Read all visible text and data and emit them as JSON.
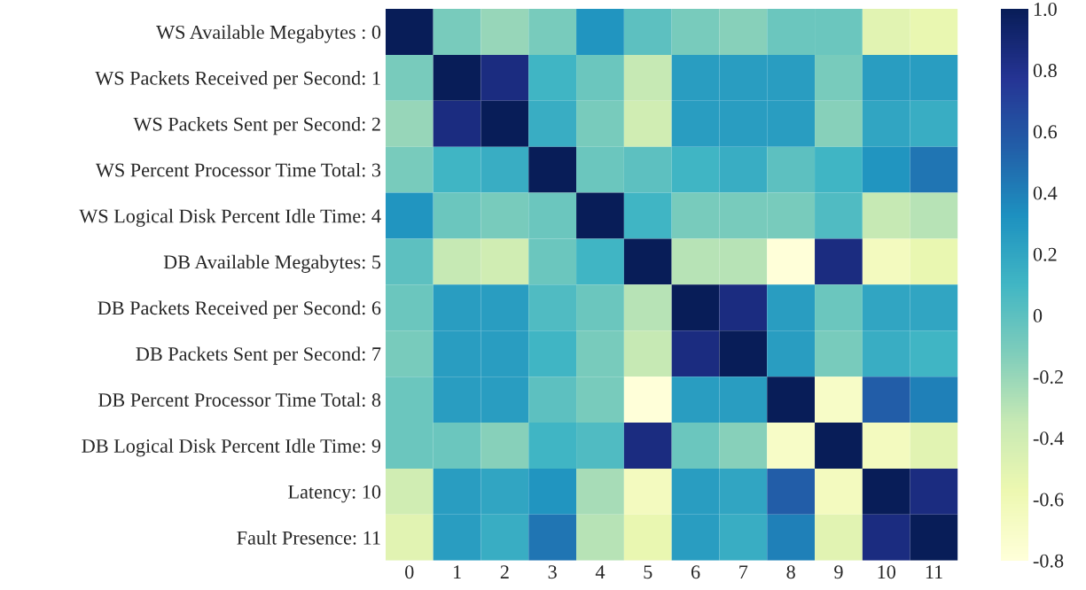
{
  "chart_data": {
    "type": "heatmap",
    "categories": [
      "0",
      "1",
      "2",
      "3",
      "4",
      "5",
      "6",
      "7",
      "8",
      "9",
      "10",
      "11"
    ],
    "y_categories": [
      "WS Available Megabytes : 0",
      "WS Packets Received per Second: 1",
      "WS Packets Sent per Second: 2",
      "WS Percent Processor Time Total: 3",
      "WS Logical Disk Percent Idle Time: 4",
      "DB Available Megabytes: 5",
      "DB Packets Received per Second: 6",
      "DB Packets Sent per Second: 7",
      "DB Percent Processor Time Total: 8",
      "DB Logical Disk Percent Idle Time: 9",
      "Latency: 10",
      "Fault Presence: 11"
    ],
    "cells": [
      [
        1.0,
        -0.1,
        -0.2,
        -0.1,
        0.3,
        0.0,
        -0.1,
        -0.15,
        -0.05,
        -0.05,
        -0.5,
        -0.55
      ],
      [
        -0.1,
        1.0,
        0.85,
        0.1,
        -0.05,
        -0.35,
        0.25,
        0.25,
        0.25,
        -0.1,
        0.25,
        0.25
      ],
      [
        -0.2,
        0.85,
        1.0,
        0.15,
        -0.1,
        -0.4,
        0.25,
        0.25,
        0.25,
        -0.15,
        0.2,
        0.15
      ],
      [
        -0.1,
        0.1,
        0.15,
        1.0,
        -0.05,
        0.0,
        0.1,
        0.15,
        0.0,
        0.1,
        0.3,
        0.45
      ],
      [
        0.3,
        -0.05,
        -0.1,
        -0.05,
        1.0,
        0.1,
        -0.1,
        -0.1,
        -0.1,
        0.05,
        -0.35,
        -0.3
      ],
      [
        0.0,
        -0.35,
        -0.4,
        -0.05,
        0.1,
        1.0,
        -0.3,
        -0.3,
        -0.8,
        0.85,
        -0.65,
        -0.55
      ],
      [
        -0.05,
        0.25,
        0.25,
        0.05,
        -0.05,
        -0.3,
        1.0,
        0.85,
        0.25,
        -0.05,
        0.2,
        0.2
      ],
      [
        -0.1,
        0.25,
        0.25,
        0.1,
        -0.1,
        -0.35,
        0.85,
        1.0,
        0.25,
        -0.1,
        0.15,
        0.1
      ],
      [
        -0.05,
        0.25,
        0.25,
        0.0,
        -0.1,
        -0.8,
        0.25,
        0.25,
        1.0,
        -0.7,
        0.55,
        0.4
      ],
      [
        -0.05,
        -0.05,
        -0.15,
        0.1,
        0.05,
        0.85,
        -0.05,
        -0.15,
        -0.7,
        1.0,
        -0.65,
        -0.5
      ],
      [
        -0.4,
        0.25,
        0.2,
        0.3,
        -0.25,
        -0.65,
        0.25,
        0.2,
        0.55,
        -0.65,
        1.0,
        0.85
      ],
      [
        -0.5,
        0.25,
        0.15,
        0.45,
        -0.3,
        -0.55,
        0.25,
        0.15,
        0.4,
        -0.5,
        0.85,
        1.0
      ]
    ],
    "clim": [
      -0.8,
      1.0
    ],
    "cticks": [
      -0.8,
      -0.6,
      -0.4,
      -0.2,
      0,
      0.2,
      0.4,
      0.6,
      0.8,
      {
        "value": 1.0,
        "label": "1.0"
      }
    ]
  }
}
